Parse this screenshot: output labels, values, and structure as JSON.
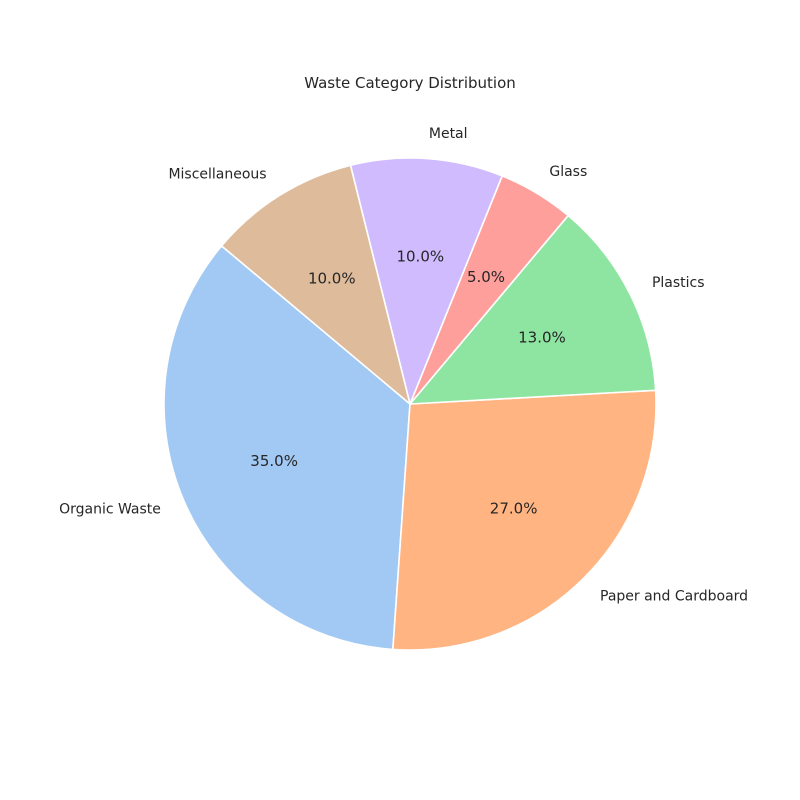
{
  "chart_data": {
    "type": "pie",
    "title": "Waste Category Distribution",
    "start_angle_deg": 140,
    "direction": "counterclockwise",
    "slices": [
      {
        "label": "Organic Waste",
        "value": 35.0,
        "pct_label": "35.0%",
        "color": "#a1c9f4"
      },
      {
        "label": "Paper and Cardboard",
        "value": 27.0,
        "pct_label": "27.0%",
        "color": "#ffb482"
      },
      {
        "label": "Plastics",
        "value": 13.0,
        "pct_label": "13.0%",
        "color": "#8de5a1"
      },
      {
        "label": "Glass",
        "value": 5.0,
        "pct_label": "5.0%",
        "color": "#ff9f9b"
      },
      {
        "label": "Metal",
        "value": 10.0,
        "pct_label": "10.0%",
        "color": "#d0bbff"
      },
      {
        "label": "Miscellaneous",
        "value": 10.0,
        "pct_label": "10.0%",
        "color": "#debb9b"
      }
    ]
  }
}
